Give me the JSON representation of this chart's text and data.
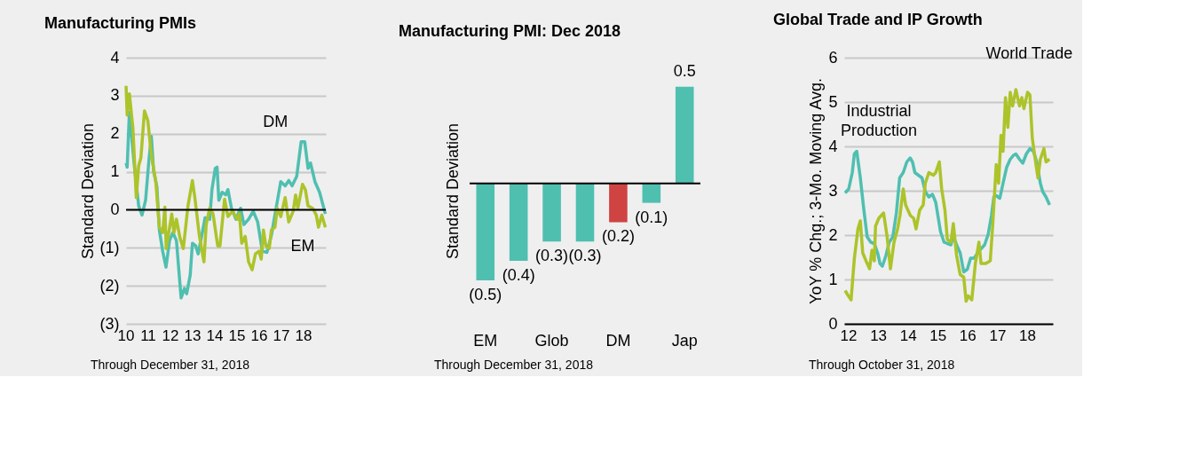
{
  "chart_data": [
    {
      "type": "line",
      "title": "Manufacturing PMIs",
      "ylabel": "Standard Deviation",
      "xlim": [
        2010,
        2019
      ],
      "ylim": [
        -3,
        4
      ],
      "xticks": [
        {
          "value": 2010,
          "label": "10"
        },
        {
          "value": 2011,
          "label": "11"
        },
        {
          "value": 2012,
          "label": "12"
        },
        {
          "value": 2013,
          "label": "13"
        },
        {
          "value": 2014,
          "label": "14"
        },
        {
          "value": 2015,
          "label": "15"
        },
        {
          "value": 2016,
          "label": "16"
        },
        {
          "value": 2017,
          "label": "17"
        },
        {
          "value": 2018,
          "label": "18"
        }
      ],
      "yticks": [
        {
          "value": -3,
          "label": "(3)"
        },
        {
          "value": -2,
          "label": "(2)"
        },
        {
          "value": -1,
          "label": "(1)"
        },
        0,
        1,
        2,
        3,
        4
      ],
      "grid": "y",
      "ref_lines": [
        {
          "axis": "y",
          "value": 0,
          "color": "#000000"
        }
      ],
      "annotations": [
        "Through December 31, 2018"
      ],
      "series": [
        {
          "name": "DM",
          "color": "#4fbfb0",
          "x": [
            2010.0,
            2010.05,
            2010.15,
            2010.36,
            2010.57,
            2010.72,
            2010.88,
            2011.03,
            2011.14,
            2011.24,
            2011.39,
            2011.5,
            2011.65,
            2011.8,
            2011.96,
            2012.11,
            2012.27,
            2012.48,
            2012.63,
            2012.73,
            2012.89,
            2012.99,
            2013.14,
            2013.25,
            2013.46,
            2013.56,
            2013.77,
            2013.87,
            2014.02,
            2014.1,
            2014.18,
            2014.33,
            2014.49,
            2014.59,
            2014.75,
            2014.95,
            2015.16,
            2015.31,
            2015.52,
            2015.73,
            2015.93,
            2016.14,
            2016.35,
            2016.55,
            2016.76,
            2016.97,
            2017.17,
            2017.33,
            2017.48,
            2017.69,
            2017.89,
            2018.05,
            2018.2,
            2018.31,
            2018.51,
            2018.72,
            2018.98
          ],
          "values": [
            1.23,
            1.12,
            2.56,
            1.23,
            0.1,
            -0.14,
            0.25,
            1.3,
            1.93,
            1.02,
            0.6,
            -0.53,
            -1.09,
            -1.51,
            -0.81,
            -0.6,
            -0.81,
            -2.32,
            -2.07,
            -2.21,
            -1.72,
            -0.88,
            -0.95,
            -1.16,
            -0.53,
            -0.21,
            -0.25,
            0.53,
            1.09,
            1.12,
            0.25,
            0.46,
            0.39,
            0.53,
            0.04,
            -0.25,
            0.04,
            -0.39,
            -0.25,
            -0.04,
            -0.32,
            -1.09,
            -1.12,
            -0.67,
            0.04,
            0.74,
            0.63,
            0.77,
            0.63,
            0.88,
            1.79,
            1.79,
            1.09,
            1.23,
            0.74,
            0.46,
            -0.11
          ]
        },
        {
          "name": "EM",
          "color": "#adc32a",
          "x": [
            2010.0,
            2010.05,
            2010.15,
            2010.31,
            2010.46,
            2010.57,
            2010.67,
            2010.83,
            2010.98,
            2011.14,
            2011.34,
            2011.5,
            2011.65,
            2011.75,
            2011.81,
            2012.06,
            2012.16,
            2012.27,
            2012.43,
            2012.58,
            2012.79,
            2012.99,
            2013.1,
            2013.3,
            2013.51,
            2013.61,
            2013.77,
            2013.92,
            2014.13,
            2014.23,
            2014.44,
            2014.59,
            2014.8,
            2015.01,
            2015.11,
            2015.21,
            2015.37,
            2015.52,
            2015.68,
            2015.83,
            2015.99,
            2016.09,
            2016.19,
            2016.3,
            2016.45,
            2016.55,
            2016.71,
            2016.81,
            2016.97,
            2017.17,
            2017.33,
            2017.53,
            2017.64,
            2017.74,
            2017.95,
            2018.08,
            2018.2,
            2018.41,
            2018.57,
            2018.67,
            2018.82,
            2018.98
          ],
          "values": [
            3.26,
            2.49,
            3.05,
            2.14,
            0.32,
            1.16,
            1.37,
            2.6,
            2.35,
            1.44,
            0.74,
            -0.46,
            -0.6,
            0.07,
            -1.02,
            -0.11,
            -0.6,
            -0.25,
            -0.74,
            -1.02,
            0.1,
            0.77,
            0.32,
            -0.67,
            -1.37,
            -0.39,
            0.04,
            -0.11,
            -0.95,
            -0.95,
            0.28,
            -0.18,
            -0.04,
            -0.25,
            -0.11,
            -0.88,
            -0.7,
            -1.37,
            -1.58,
            -1.16,
            -1.09,
            -1.3,
            -0.53,
            -0.95,
            -1.02,
            -0.53,
            -0.46,
            0.04,
            -0.18,
            0.32,
            -0.32,
            -0.04,
            0.39,
            0.04,
            0.67,
            0.53,
            0.1,
            0.04,
            -0.14,
            -0.46,
            -0.14,
            -0.46
          ]
        }
      ]
    },
    {
      "type": "bar",
      "title": "Manufacturing PMI: Dec 2018",
      "ylabel": "Standard Deviation",
      "categories": [
        "EM",
        null,
        "Glob",
        null,
        "DM",
        null,
        "Jap"
      ],
      "values": [
        -0.5,
        -0.4,
        -0.3,
        -0.3,
        -0.2,
        -0.1,
        0.5
      ],
      "colors": [
        "#4fbfb0",
        "#4fbfb0",
        "#4fbfb0",
        "#4fbfb0",
        "#d04343",
        "#4fbfb0",
        "#4fbfb0"
      ],
      "value_labels": [
        "(0.5)",
        "(0.4)",
        "(0.3)",
        "(0.3)",
        "(0.2)",
        "(0.1)",
        "0.5"
      ],
      "grid": false,
      "ref_lines": [
        {
          "axis": "y",
          "value": 0,
          "color": "#000000"
        }
      ],
      "annotations": [
        "Through December 31, 2018"
      ]
    },
    {
      "type": "line",
      "title": "Global Trade and IP Growth",
      "ylabel": "YoY % Chg.; 3-Mo. Moving Avg.",
      "xlim": [
        2011.85,
        2018.85
      ],
      "ylim": [
        0,
        6
      ],
      "xticks": [
        {
          "value": 2012,
          "label": "12"
        },
        {
          "value": 2013,
          "label": "13"
        },
        {
          "value": 2014,
          "label": "14"
        },
        {
          "value": 2015,
          "label": "15"
        },
        {
          "value": 2016,
          "label": "16"
        },
        {
          "value": 2017,
          "label": "17"
        },
        {
          "value": 2018,
          "label": "18"
        }
      ],
      "yticks": [
        0,
        1,
        2,
        3,
        4,
        5,
        6
      ],
      "grid": "y",
      "annotations": [
        "Through October 31, 2018"
      ],
      "series": [
        {
          "name": "Industrial Production",
          "color": "#4fbfb0",
          "x": [
            2011.88,
            2012.0,
            2012.12,
            2012.19,
            2012.27,
            2012.39,
            2012.51,
            2012.62,
            2012.74,
            2012.86,
            2012.97,
            2013.05,
            2013.13,
            2013.25,
            2013.36,
            2013.48,
            2013.6,
            2013.71,
            2013.83,
            2013.95,
            2014.06,
            2014.14,
            2014.22,
            2014.34,
            2014.46,
            2014.57,
            2014.69,
            2014.81,
            2014.92,
            2015.08,
            2015.2,
            2015.31,
            2015.43,
            2015.51,
            2015.62,
            2015.74,
            2015.86,
            2015.98,
            2016.09,
            2016.21,
            2016.33,
            2016.44,
            2016.56,
            2016.68,
            2016.79,
            2016.87,
            2016.95,
            2017.07,
            2017.18,
            2017.3,
            2017.42,
            2017.53,
            2017.61,
            2017.73,
            2017.84,
            2017.96,
            2018.08,
            2018.2,
            2018.31,
            2018.43,
            2018.51,
            2018.62,
            2018.74
          ],
          "values": [
            2.95,
            3.04,
            3.41,
            3.83,
            3.89,
            3.29,
            2.56,
            1.96,
            1.84,
            1.81,
            1.6,
            1.36,
            1.3,
            1.54,
            1.84,
            1.96,
            2.5,
            3.29,
            3.41,
            3.65,
            3.74,
            3.65,
            3.41,
            3.35,
            3.29,
            2.98,
            2.86,
            2.92,
            2.74,
            2.08,
            1.84,
            1.81,
            1.78,
            1.99,
            1.78,
            1.6,
            1.17,
            1.23,
            1.48,
            1.48,
            1.6,
            1.69,
            1.78,
            2.02,
            2.44,
            2.86,
            2.89,
            2.83,
            3.17,
            3.53,
            3.71,
            3.8,
            3.83,
            3.71,
            3.62,
            3.83,
            3.95,
            3.89,
            3.65,
            3.17,
            2.98,
            2.86,
            2.68
          ]
        },
        {
          "name": "World Trade",
          "color": "#adc32a",
          "x": [
            2011.88,
            2011.96,
            2012.08,
            2012.19,
            2012.31,
            2012.39,
            2012.47,
            2012.58,
            2012.7,
            2012.78,
            2012.86,
            2012.9,
            2013.01,
            2013.17,
            2013.29,
            2013.4,
            2013.52,
            2013.64,
            2013.72,
            2013.83,
            2013.91,
            2014.07,
            2014.18,
            2014.26,
            2014.38,
            2014.5,
            2014.57,
            2014.69,
            2014.84,
            2014.92,
            2015.04,
            2015.12,
            2015.23,
            2015.31,
            2015.43,
            2015.51,
            2015.62,
            2015.74,
            2015.86,
            2015.94,
            2016.01,
            2016.13,
            2016.25,
            2016.37,
            2016.44,
            2016.6,
            2016.75,
            2016.83,
            2016.95,
            2017.03,
            2017.11,
            2017.18,
            2017.26,
            2017.34,
            2017.42,
            2017.5,
            2017.61,
            2017.73,
            2017.81,
            2017.88,
            2018.0,
            2018.08,
            2018.16,
            2018.27,
            2018.35,
            2018.43,
            2018.55,
            2018.62,
            2018.74
          ],
          "values": [
            0.75,
            0.66,
            0.54,
            1.48,
            2.14,
            2.32,
            1.6,
            1.42,
            1.24,
            1.66,
            1.42,
            2.2,
            2.38,
            2.5,
            1.96,
            1.24,
            1.84,
            2.14,
            2.44,
            3.04,
            2.68,
            2.44,
            2.38,
            2.14,
            2.56,
            2.68,
            3.17,
            3.41,
            3.35,
            3.41,
            3.65,
            3.04,
            2.56,
            1.9,
            1.84,
            2.26,
            1.54,
            1.11,
            1.05,
            0.51,
            0.63,
            0.54,
            1.36,
            1.84,
            1.36,
            1.36,
            1.42,
            2.2,
            3.59,
            3.17,
            4.25,
            3.89,
            5.1,
            4.43,
            5.22,
            4.91,
            5.28,
            4.91,
            5.1,
            4.85,
            5.22,
            5.16,
            4.19,
            3.65,
            3.29,
            3.71,
            3.95,
            3.65,
            3.71
          ]
        }
      ]
    }
  ]
}
